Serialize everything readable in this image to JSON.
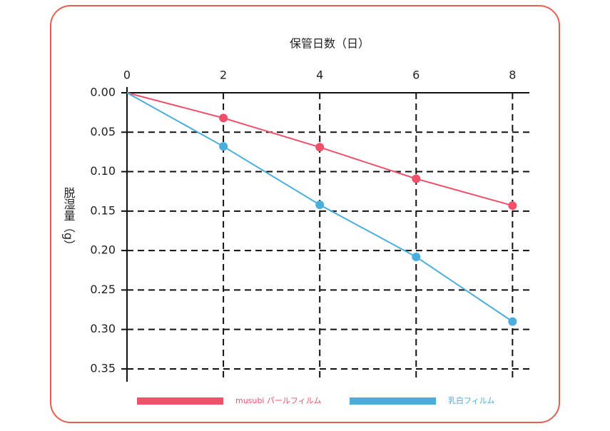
{
  "chart_data": {
    "type": "line",
    "x_label": "保管日数（日）",
    "y_label": "脱湿量（g）",
    "x": [
      0,
      2,
      4,
      6,
      8
    ],
    "series": [
      {
        "name": "musubi パールフィルム",
        "color": "#f0506a",
        "values": [
          0,
          0.032,
          0.069,
          0.109,
          0.143
        ]
      },
      {
        "name": "乳白フィルム",
        "color": "#4aaedc",
        "values": [
          0,
          0.068,
          0.142,
          0.208,
          0.29
        ]
      }
    ],
    "xlim": [
      0,
      8.35
    ],
    "xticks": [
      0,
      2,
      4,
      6,
      8
    ],
    "ylim": [
      0,
      0.36
    ],
    "yticks": [
      {
        "value": 0,
        "label": "0.00"
      },
      0.05,
      {
        "value": 0.1,
        "label": "0.10"
      },
      0.15,
      {
        "value": 0.2,
        "label": "0.20"
      },
      0.25,
      {
        "value": 0.3,
        "label": "0.30"
      },
      0.35
    ],
    "y_inverted": true,
    "x_axis_position": "top",
    "grid": true,
    "legend": "bottom"
  }
}
